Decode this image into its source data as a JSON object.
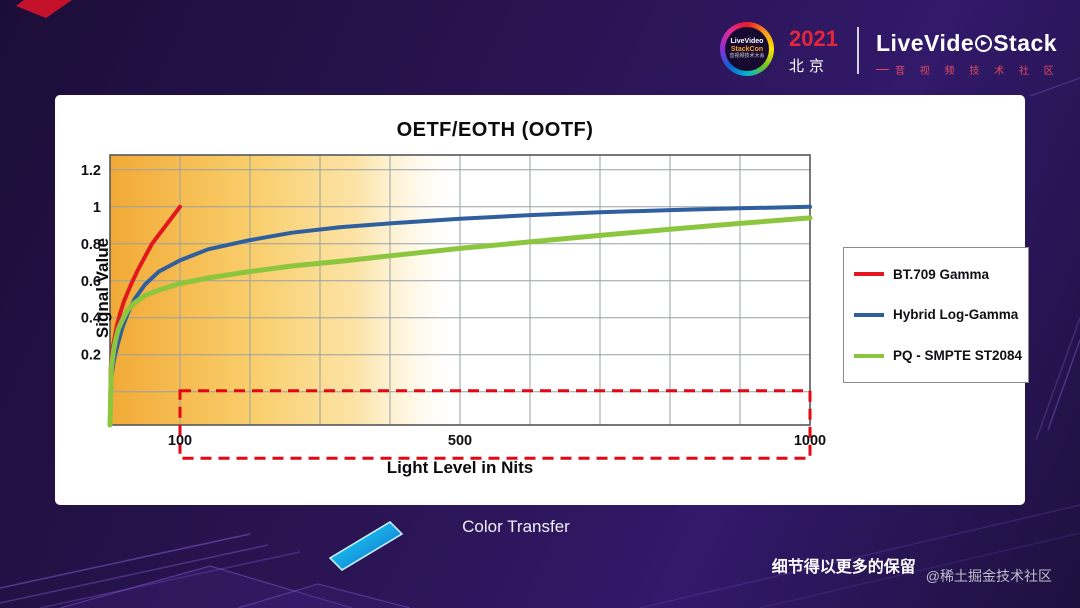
{
  "header": {
    "conference_logo": {
      "line1": "LiveVideo",
      "line2": "StackCon",
      "line3": "音视频技术大会"
    },
    "year": "2021",
    "city": "北京",
    "brand_left": "LiveVide",
    "brand_right": "Stack",
    "brand_sub": "音 视 频 技 术 社 区"
  },
  "caption": "Color Transfer",
  "footer": {
    "note": "细节得以更多的保留",
    "watermark": "@稀土掘金技术社区"
  },
  "chart_data": {
    "type": "line",
    "title": "OETF/EOTH (OOTF)",
    "xlabel": "Light Level in Nits",
    "ylabel": "Signal Value",
    "xlim": [
      0,
      1000
    ],
    "ylim": [
      0,
      1.2
    ],
    "x_grid_step": 100,
    "y_grid_step": 0.2,
    "x_ticks": [
      [
        100,
        "100"
      ],
      [
        500,
        "500"
      ],
      [
        1000,
        "1000"
      ]
    ],
    "y_ticks": [
      [
        0.2,
        "0.2"
      ],
      [
        0.4,
        "0.4"
      ],
      [
        0.6,
        "0.6"
      ],
      [
        0.8,
        "0.8"
      ],
      [
        1,
        "1"
      ],
      [
        1.2,
        "1.2"
      ]
    ],
    "grid": true,
    "legend_position": "right-outside",
    "highlight_region": {
      "x0": 0,
      "x1": 500,
      "color": "#F6B93B"
    },
    "annotation_box": {
      "x0": 100,
      "x1": 1000,
      "y0": -0.36,
      "y1": 0.005,
      "color": "#E30613",
      "style": "dashed"
    },
    "series": [
      {
        "name": "BT.709 Gamma",
        "color": "#E2181E",
        "width": 4,
        "points": [
          [
            1,
            0.13
          ],
          [
            2,
            0.17
          ],
          [
            4,
            0.24
          ],
          [
            7,
            0.3
          ],
          [
            10,
            0.36
          ],
          [
            15,
            0.43
          ],
          [
            20,
            0.49
          ],
          [
            30,
            0.58
          ],
          [
            40,
            0.66
          ],
          [
            50,
            0.73
          ],
          [
            60,
            0.8
          ],
          [
            70,
            0.85
          ],
          [
            80,
            0.9
          ],
          [
            90,
            0.95
          ],
          [
            100,
            1.0
          ]
        ]
      },
      {
        "name": "Hybrid Log-Gamma",
        "color": "#2F5F9E",
        "width": 4,
        "points": [
          [
            2,
            0.08
          ],
          [
            5,
            0.16
          ],
          [
            8,
            0.21
          ],
          [
            12,
            0.27
          ],
          [
            18,
            0.35
          ],
          [
            25,
            0.42
          ],
          [
            35,
            0.5
          ],
          [
            50,
            0.58
          ],
          [
            70,
            0.65
          ],
          [
            100,
            0.71
          ],
          [
            140,
            0.77
          ],
          [
            200,
            0.82
          ],
          [
            260,
            0.86
          ],
          [
            330,
            0.89
          ],
          [
            400,
            0.91
          ],
          [
            500,
            0.935
          ],
          [
            600,
            0.955
          ],
          [
            700,
            0.97
          ],
          [
            800,
            0.982
          ],
          [
            900,
            0.992
          ],
          [
            1000,
            1.0
          ]
        ]
      },
      {
        "name": "PQ - SMPTE ST2084",
        "color": "#8CC63F",
        "width": 5,
        "points": [
          [
            2,
            0.13
          ],
          [
            5,
            0.22
          ],
          [
            8,
            0.28
          ],
          [
            12,
            0.34
          ],
          [
            18,
            0.39
          ],
          [
            25,
            0.44
          ],
          [
            35,
            0.48
          ],
          [
            50,
            0.52
          ],
          [
            70,
            0.55
          ],
          [
            100,
            0.585
          ],
          [
            140,
            0.615
          ],
          [
            200,
            0.65
          ],
          [
            260,
            0.68
          ],
          [
            330,
            0.705
          ],
          [
            400,
            0.735
          ],
          [
            500,
            0.775
          ],
          [
            600,
            0.81
          ],
          [
            700,
            0.845
          ],
          [
            800,
            0.878
          ],
          [
            900,
            0.91
          ],
          [
            1000,
            0.94
          ]
        ]
      }
    ]
  }
}
